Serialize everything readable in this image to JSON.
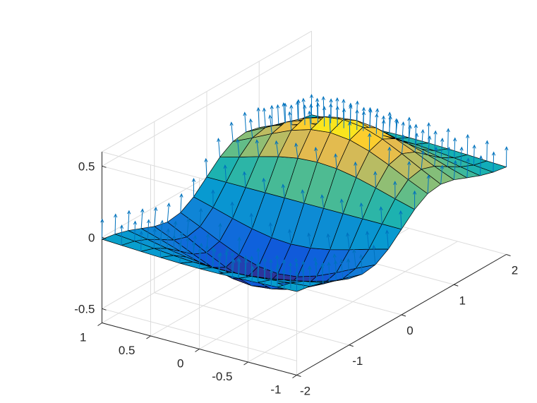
{
  "chart_data": {
    "type": "surface",
    "function": "z = x * exp(-x^2 - y^2)",
    "overlay": "surface normal vectors (quiver3)",
    "x": {
      "min": -2,
      "max": 2,
      "step": 0.25
    },
    "y": {
      "min": -1,
      "max": 1,
      "step": 0.2
    },
    "zlim": [
      -0.6,
      0.6
    ],
    "xticks": [
      "-2",
      "-1",
      "0",
      "1",
      "2"
    ],
    "yticks": [
      "-1",
      "-0.5",
      "0",
      "0.5",
      "1"
    ],
    "zticks": [
      "-0.5",
      "0",
      "0.5"
    ],
    "xlabel": "",
    "ylabel": "",
    "zlabel": "",
    "title": "",
    "grid": true,
    "colormap": "parula",
    "colors": {
      "edge": "#000000",
      "quiver": "#0072bd",
      "grid": "#dcdcdc",
      "axis": "#262626"
    }
  }
}
